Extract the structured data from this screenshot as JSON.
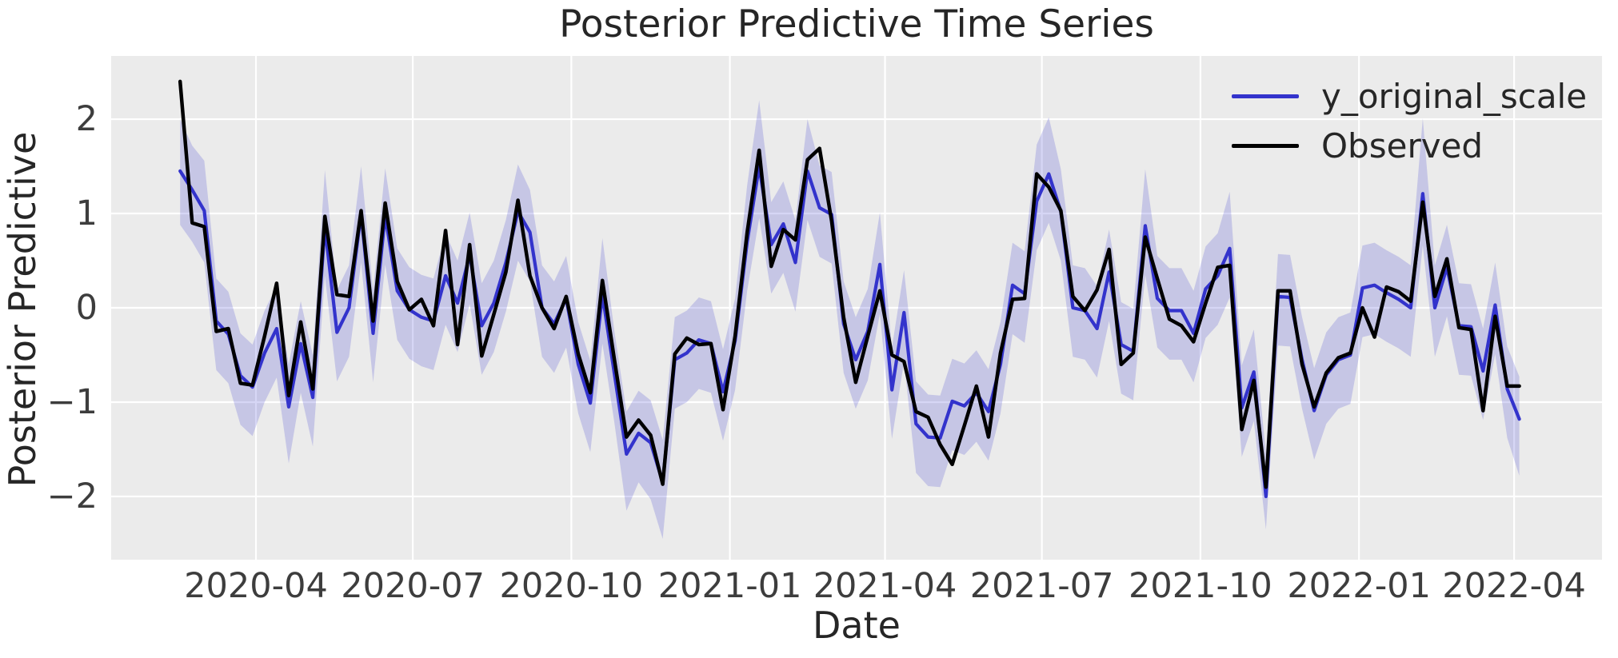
{
  "figure": {
    "title": "Posterior Predictive Time Series",
    "xlabel": "Date",
    "ylabel": "Posterior Predictive"
  },
  "legend": {
    "position": "upper-right",
    "items": [
      {
        "label": "y_original_scale",
        "color": "#3333cc"
      },
      {
        "label": "Observed",
        "color": "#000000"
      }
    ]
  },
  "colors": {
    "plot_background": "#ebebeb",
    "figure_background": "#ffffff",
    "gridline": "#ffffff",
    "predicted_line": "#3333cc",
    "observed_line": "#000000",
    "uncertainty_band": "rgba(51,51,204,0.20)",
    "text": "#262626",
    "tick_text": "#3d3d3d"
  },
  "chart_data": {
    "type": "line",
    "title": "Posterior Predictive Time Series",
    "xlabel": "Date",
    "ylabel": "Posterior Predictive",
    "grid": true,
    "legend_position": "upper-right",
    "x_start_date": "2020-02-17",
    "x_step_days": 7,
    "xlim_days_from_start": [
      -40,
      825
    ],
    "ylim": [
      -2.67,
      2.67
    ],
    "y_ticks": [
      2,
      1,
      0,
      -1,
      -2
    ],
    "y_tick_labels": [
      "2",
      "1",
      "0",
      "−1",
      "−2"
    ],
    "x_tick_dates": [
      "2020-04-01",
      "2020-07-01",
      "2020-10-01",
      "2021-01-01",
      "2021-04-01",
      "2021-07-01",
      "2021-10-01",
      "2022-01-01",
      "2022-04-01"
    ],
    "x_tick_labels": [
      "2020-04",
      "2020-07",
      "2020-10",
      "2021-01",
      "2021-04",
      "2021-07",
      "2021-10",
      "2022-01",
      "2022-04"
    ],
    "series": [
      {
        "name": "y_original_scale",
        "color": "#3333cc",
        "values": [
          1.45,
          1.25,
          1.03,
          -0.14,
          -0.28,
          -0.72,
          -0.84,
          -0.48,
          -0.22,
          -1.05,
          -0.38,
          -0.95,
          0.86,
          -0.26,
          0.0,
          1.0,
          -0.27,
          0.98,
          0.18,
          -0.02,
          -0.1,
          -0.14,
          0.34,
          0.05,
          0.56,
          -0.19,
          0.05,
          0.48,
          1.02,
          0.8,
          0.0,
          -0.17,
          0.1,
          -0.6,
          -1.01,
          0.14,
          -0.7,
          -1.55,
          -1.33,
          -1.43,
          -1.85,
          -0.55,
          -0.48,
          -0.34,
          -0.38,
          -0.89,
          -0.35,
          0.7,
          1.5,
          0.67,
          0.89,
          0.48,
          1.45,
          1.06,
          0.99,
          -0.17,
          -0.55,
          -0.25,
          0.46,
          -0.87,
          -0.05,
          -1.23,
          -1.37,
          -1.38,
          -0.99,
          -1.04,
          -0.9,
          -1.1,
          -0.6,
          0.24,
          0.15,
          1.13,
          1.42,
          1.02,
          0.0,
          -0.03,
          -0.22,
          0.38,
          -0.39,
          -0.46,
          0.87,
          0.1,
          -0.03,
          -0.03,
          -0.27,
          0.2,
          0.34,
          0.63,
          -1.06,
          -0.68,
          -2.0,
          0.12,
          0.11,
          -0.55,
          -1.09,
          -0.71,
          -0.55,
          -0.5,
          0.21,
          0.24,
          0.16,
          0.09,
          0.0,
          1.21,
          0.0,
          0.43,
          -0.19,
          -0.2,
          -0.67,
          0.03,
          -0.86,
          -1.18
        ]
      },
      {
        "name": "Observed",
        "color": "#000000",
        "values": [
          2.4,
          0.9,
          0.86,
          -0.25,
          -0.22,
          -0.8,
          -0.82,
          -0.3,
          0.26,
          -0.93,
          -0.15,
          -0.86,
          0.97,
          0.14,
          0.12,
          1.03,
          -0.14,
          1.11,
          0.28,
          -0.02,
          0.09,
          -0.19,
          0.82,
          -0.39,
          0.67,
          -0.51,
          -0.07,
          0.38,
          1.14,
          0.34,
          0.0,
          -0.22,
          0.12,
          -0.49,
          -0.9,
          0.29,
          -0.55,
          -1.37,
          -1.19,
          -1.35,
          -1.87,
          -0.49,
          -0.32,
          -0.39,
          -0.38,
          -1.08,
          -0.3,
          0.8,
          1.67,
          0.44,
          0.83,
          0.72,
          1.57,
          1.69,
          0.92,
          -0.1,
          -0.79,
          -0.3,
          0.18,
          -0.5,
          -0.57,
          -1.1,
          -1.16,
          -1.45,
          -1.66,
          -1.25,
          -0.83,
          -1.37,
          -0.48,
          0.09,
          0.1,
          1.42,
          1.28,
          1.03,
          0.12,
          -0.03,
          0.19,
          0.62,
          -0.6,
          -0.48,
          0.75,
          0.31,
          -0.12,
          -0.19,
          -0.36,
          0.05,
          0.43,
          0.45,
          -1.29,
          -0.77,
          -1.9,
          0.18,
          0.18,
          -0.6,
          -1.05,
          -0.69,
          -0.53,
          -0.48,
          0.0,
          -0.31,
          0.22,
          0.17,
          0.07,
          1.12,
          0.12,
          0.52,
          -0.21,
          -0.23,
          -1.09,
          -0.09,
          -0.83,
          -0.83
        ]
      }
    ],
    "band": {
      "name": "posterior-predictive-uncertainty-band",
      "fill": "rgba(51,51,204,0.20)",
      "upper": [
        2.0,
        1.72,
        1.56,
        0.31,
        0.17,
        -0.27,
        -0.39,
        -0.03,
        0.23,
        -0.6,
        0.07,
        -0.5,
        1.46,
        0.19,
        0.45,
        1.5,
        0.18,
        1.48,
        0.63,
        0.43,
        0.35,
        0.31,
        0.79,
        0.5,
        1.01,
        0.26,
        0.5,
        0.93,
        1.52,
        1.25,
        0.45,
        0.28,
        0.55,
        -0.15,
        -0.56,
        0.74,
        -0.25,
        -1.1,
        -0.88,
        -0.98,
        -1.4,
        -0.1,
        -0.03,
        0.11,
        0.07,
        -0.44,
        0.1,
        1.3,
        2.2,
        1.12,
        1.34,
        0.93,
        2.0,
        1.51,
        1.44,
        0.28,
        -0.1,
        0.2,
        1.01,
        -0.42,
        0.4,
        -0.78,
        -0.92,
        -0.93,
        -0.54,
        -0.59,
        -0.45,
        -0.65,
        -0.15,
        0.69,
        0.6,
        1.73,
        2.02,
        1.47,
        0.45,
        0.42,
        0.23,
        0.83,
        0.06,
        -0.01,
        1.47,
        0.55,
        0.42,
        0.42,
        0.18,
        0.65,
        0.79,
        1.23,
        -0.61,
        -0.23,
        -1.55,
        0.57,
        0.56,
        -0.1,
        -0.64,
        -0.26,
        -0.1,
        -0.05,
        0.66,
        0.69,
        0.61,
        0.54,
        0.45,
        2.01,
        0.45,
        0.88,
        0.26,
        0.25,
        -0.22,
        0.48,
        -0.41,
        -0.73
      ],
      "lower": [
        0.88,
        0.7,
        0.48,
        -0.66,
        -0.8,
        -1.24,
        -1.36,
        -1.0,
        -0.74,
        -1.65,
        -0.9,
        -1.47,
        0.34,
        -0.78,
        -0.52,
        0.48,
        -0.79,
        0.46,
        -0.34,
        -0.54,
        -0.62,
        -0.66,
        -0.18,
        -0.47,
        0.04,
        -0.71,
        -0.47,
        -0.04,
        0.5,
        0.28,
        -0.52,
        -0.69,
        -0.42,
        -1.12,
        -1.53,
        -0.38,
        -1.22,
        -2.15,
        -1.85,
        -2.03,
        -2.45,
        -1.07,
        -1.0,
        -0.86,
        -0.9,
        -1.41,
        -0.87,
        0.18,
        0.95,
        0.15,
        0.37,
        -0.04,
        0.93,
        0.54,
        0.47,
        -0.69,
        -1.07,
        -0.77,
        -0.06,
        -1.39,
        -0.57,
        -1.75,
        -1.89,
        -1.9,
        -1.51,
        -1.56,
        -1.42,
        -1.62,
        -1.12,
        -0.28,
        -0.37,
        0.61,
        0.9,
        0.5,
        -0.52,
        -0.55,
        -0.74,
        -0.14,
        -0.91,
        -0.98,
        0.35,
        -0.42,
        -0.55,
        -0.55,
        -0.79,
        -0.32,
        -0.18,
        0.11,
        -1.58,
        -1.2,
        -2.35,
        -0.4,
        -0.41,
        -1.07,
        -1.61,
        -1.23,
        -1.07,
        -1.02,
        -0.31,
        -0.28,
        -0.36,
        -0.43,
        -0.52,
        0.66,
        -0.52,
        -0.09,
        -0.71,
        -0.72,
        -1.19,
        -0.49,
        -1.38,
        -1.78
      ]
    }
  }
}
